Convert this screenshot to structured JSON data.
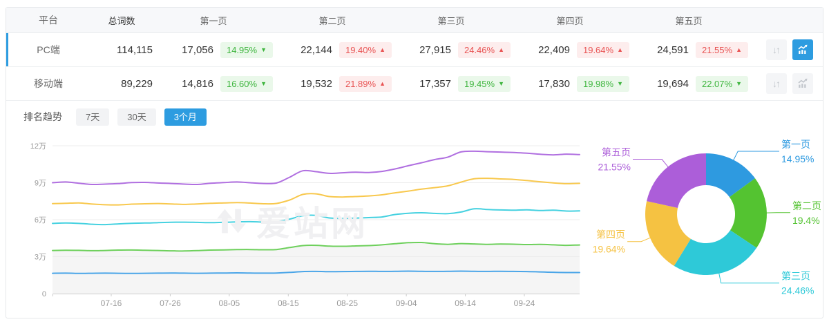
{
  "colors": {
    "accent": "#2d9ce0",
    "badge_down_text": "#3eb53e",
    "badge_down_bg": "#eaf8ea",
    "badge_up_text": "#e85353",
    "badge_up_bg": "#fdeded",
    "axis_label": "#999",
    "grid_line": "#ececec",
    "area_fill": "#f5f5f5"
  },
  "icons": {
    "sort_glyph": "↓↑"
  },
  "table": {
    "columns": [
      "平台",
      "总词数",
      "第一页",
      "第二页",
      "第三页",
      "第四页",
      "第五页"
    ],
    "rows": [
      {
        "platform": "PC端",
        "total": "114,115",
        "active": true,
        "pages": [
          {
            "count": "17,056",
            "pct": "14.95%",
            "dir": "down"
          },
          {
            "count": "22,144",
            "pct": "19.40%",
            "dir": "up"
          },
          {
            "count": "27,915",
            "pct": "24.46%",
            "dir": "up"
          },
          {
            "count": "22,409",
            "pct": "19.64%",
            "dir": "up"
          },
          {
            "count": "24,591",
            "pct": "21.55%",
            "dir": "up"
          }
        ]
      },
      {
        "platform": "移动端",
        "total": "89,229",
        "active": false,
        "pages": [
          {
            "count": "14,816",
            "pct": "16.60%",
            "dir": "down"
          },
          {
            "count": "19,532",
            "pct": "21.89%",
            "dir": "up"
          },
          {
            "count": "17,357",
            "pct": "19.45%",
            "dir": "down"
          },
          {
            "count": "17,830",
            "pct": "19.98%",
            "dir": "down"
          },
          {
            "count": "19,694",
            "pct": "22.07%",
            "dir": "down"
          }
        ]
      }
    ]
  },
  "trend": {
    "title": "排名趋势",
    "tabs": [
      {
        "label": "7天",
        "active": false
      },
      {
        "label": "30天",
        "active": false
      },
      {
        "label": "3个月",
        "active": true
      }
    ]
  },
  "watermark_text": "爱站网",
  "chart_data": [
    {
      "type": "line",
      "title": "排名趋势（3个月）",
      "x_ticks": [
        "07-16",
        "07-26",
        "08-05",
        "08-15",
        "08-25",
        "09-04",
        "09-14",
        "09-24"
      ],
      "y_ticks": [
        {
          "v": 0,
          "label": "0"
        },
        {
          "v": 3,
          "label": "3万"
        },
        {
          "v": 6,
          "label": "6万"
        },
        {
          "v": 9,
          "label": "9万"
        },
        {
          "v": 12,
          "label": "12万"
        }
      ],
      "y_unit": "万 (10,000 words)",
      "ylim_wan": [
        0,
        12
      ],
      "grid": true,
      "stacked_cumulative": true,
      "series": [
        {
          "name": "第一页",
          "color": "#4aa5e8",
          "values_wan": [
            1.65,
            1.66,
            1.64,
            1.65,
            1.66,
            1.65,
            1.64,
            1.65,
            1.66,
            1.67,
            1.66,
            1.65,
            1.66,
            1.67,
            1.68,
            1.67,
            1.66,
            1.67,
            1.72,
            1.79,
            1.8,
            1.78,
            1.79,
            1.8,
            1.81,
            1.8,
            1.81,
            1.82,
            1.81,
            1.8,
            1.81,
            1.82,
            1.81,
            1.8,
            1.81,
            1.8,
            1.79,
            1.76,
            1.73,
            1.71,
            1.71
          ]
        },
        {
          "name": "第二页",
          "color": "#6ed05c",
          "area": "#f5f5f5",
          "values_wan": [
            3.5,
            3.52,
            3.51,
            3.48,
            3.5,
            3.53,
            3.54,
            3.52,
            3.5,
            3.47,
            3.46,
            3.49,
            3.53,
            3.55,
            3.57,
            3.58,
            3.56,
            3.58,
            3.74,
            3.9,
            3.92,
            3.85,
            3.84,
            3.87,
            3.9,
            3.96,
            4.05,
            4.13,
            4.15,
            4.05,
            4.0,
            4.06,
            4.03,
            4.0,
            4.02,
            4.01,
            3.98,
            4.0,
            3.96,
            3.92,
            3.95
          ]
        },
        {
          "name": "第三页",
          "color": "#45d1e0",
          "values_wan": [
            5.7,
            5.73,
            5.7,
            5.63,
            5.6,
            5.66,
            5.71,
            5.73,
            5.76,
            5.79,
            5.8,
            5.78,
            5.76,
            5.79,
            5.82,
            5.84,
            5.81,
            5.83,
            6.05,
            6.32,
            6.35,
            6.14,
            6.1,
            6.13,
            6.17,
            6.22,
            6.42,
            6.52,
            6.56,
            6.51,
            6.49,
            6.62,
            6.88,
            6.83,
            6.79,
            6.77,
            6.8,
            6.74,
            6.77,
            6.7,
            6.71
          ]
        },
        {
          "name": "第四页",
          "color": "#f8c84d",
          "values_wan": [
            7.3,
            7.33,
            7.36,
            7.27,
            7.21,
            7.2,
            7.26,
            7.29,
            7.31,
            7.28,
            7.24,
            7.28,
            7.33,
            7.36,
            7.39,
            7.35,
            7.29,
            7.32,
            7.6,
            8.05,
            8.1,
            7.88,
            7.84,
            7.88,
            7.93,
            8.02,
            8.18,
            8.32,
            8.48,
            8.6,
            8.75,
            9.05,
            9.32,
            9.36,
            9.31,
            9.27,
            9.18,
            9.08,
            8.99,
            8.92,
            8.95
          ]
        },
        {
          "name": "第五页",
          "color": "#b06fe0",
          "values_wan": [
            9.0,
            9.06,
            8.96,
            8.86,
            8.89,
            8.93,
            9.01,
            9.03,
            8.98,
            8.94,
            8.89,
            8.86,
            8.96,
            9.01,
            9.06,
            9.0,
            8.94,
            8.98,
            9.45,
            9.97,
            9.9,
            9.76,
            9.81,
            9.86,
            9.83,
            9.92,
            10.12,
            10.38,
            10.62,
            10.88,
            11.08,
            11.5,
            11.56,
            11.52,
            11.49,
            11.45,
            11.4,
            11.31,
            11.26,
            11.32,
            11.28
          ]
        }
      ]
    },
    {
      "type": "donut",
      "legend_position": "callout-labels",
      "slices": [
        {
          "label": "第一页",
          "value_pct": 14.95,
          "display": "14.95%",
          "color": "#2e9ae0"
        },
        {
          "label": "第二页",
          "value_pct": 19.4,
          "display": "19.4%",
          "color": "#54c331"
        },
        {
          "label": "第三页",
          "value_pct": 24.46,
          "display": "24.46%",
          "color": "#2ec9d8"
        },
        {
          "label": "第四页",
          "value_pct": 19.64,
          "display": "19.64%",
          "color": "#f5c242"
        },
        {
          "label": "第五页",
          "value_pct": 21.55,
          "display": "21.55%",
          "color": "#ac5ed9"
        }
      ]
    }
  ]
}
